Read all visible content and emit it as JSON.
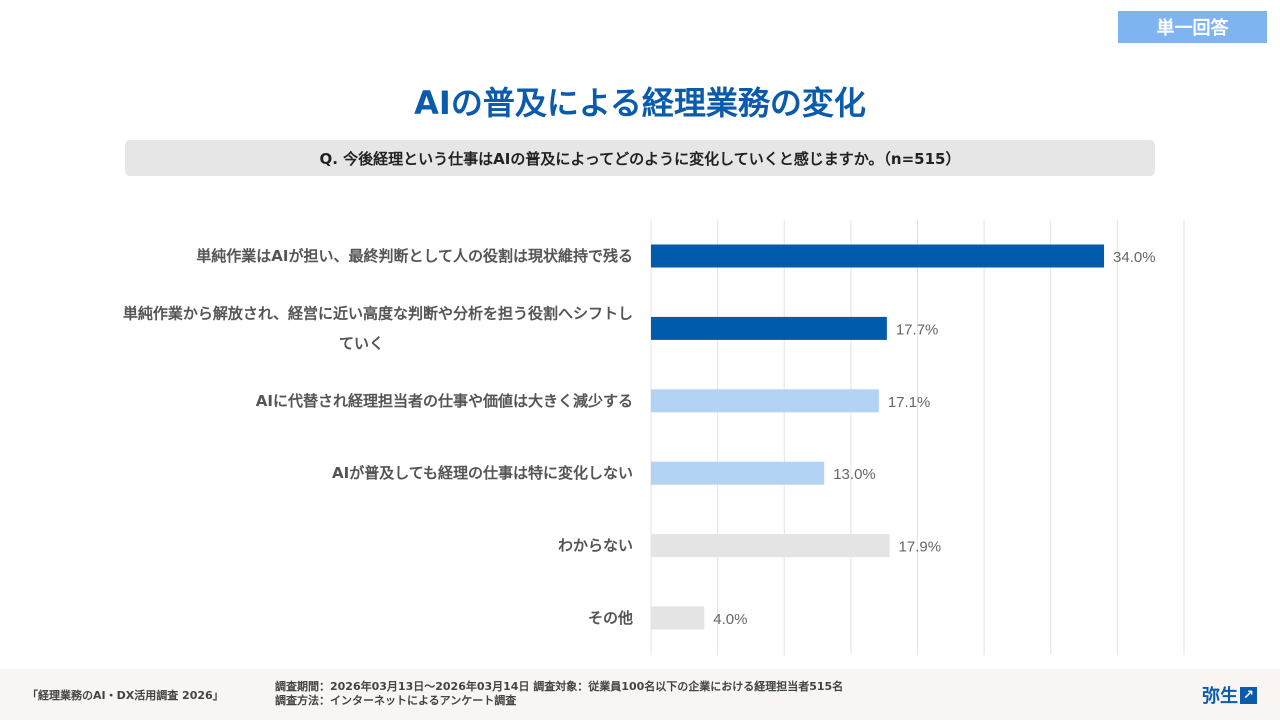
{
  "badge": "単一回答",
  "title": "AIの普及による経理業務の変化",
  "question": "Q. 今後経理という仕事はAIの普及によってどのように変化していくと感じますか。（n=515）",
  "chart_data": {
    "type": "bar",
    "orientation": "horizontal",
    "categories": [
      "単純作業はAIが担い、最終判断として人の役割は現状維持で残る",
      "単純作業から解放され、経営に近い高度な判断や分析を担う役割へシフトしていく",
      "AIに代替され経理担当者の仕事や価値は大きく減少する",
      "AIが普及しても経理の仕事は特に変化しない",
      "わからない",
      "その他"
    ],
    "values": [
      34.0,
      17.7,
      17.1,
      13.0,
      17.9,
      4.0
    ],
    "labels": [
      "34.0%",
      "17.7%",
      "17.1%",
      "13.0%",
      "17.9%",
      "4.0%"
    ],
    "colors": [
      "#005bac",
      "#005bac",
      "#b3d3f5",
      "#b3d3f5",
      "#e4e4e4",
      "#e4e4e4"
    ],
    "xlim": [
      0,
      40
    ],
    "grid_step": 5,
    "grid": true
  },
  "footer": {
    "source": "「経理業務のAI・DX活用調査 2026」",
    "period": "調査期間：2026年03月13日～2026年03月14日 調査対象：従業員100名以下の企業における経理担当者515名",
    "method": "調査方法：インターネットによるアンケート調査",
    "logo": "弥生"
  }
}
